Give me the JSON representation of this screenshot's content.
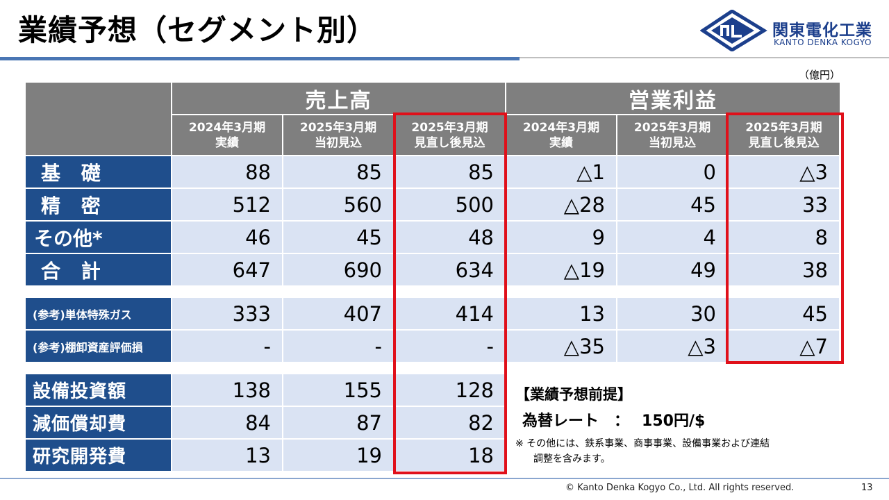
{
  "title": "業績予想（セグメント別）",
  "logo": {
    "company_jp": "関東電化工業",
    "company_en": "KANTO DENKA KOGYO",
    "mark_text": "ᑎᒪ"
  },
  "unit": "（億円）",
  "table": {
    "group_sales": "売上高",
    "group_profit": "営業利益",
    "col_headers": [
      {
        "line1": "2024年3月期",
        "line2": "実績"
      },
      {
        "line1": "2025年3月期",
        "line2": "当初見込"
      },
      {
        "line1": "2025年3月期",
        "line2": "見直し後見込"
      },
      {
        "line1": "2024年3月期",
        "line2": "実績"
      },
      {
        "line1": "2025年3月期",
        "line2": "当初見込"
      },
      {
        "line1": "2025年3月期",
        "line2": "見直し後見込"
      }
    ],
    "rows": [
      {
        "label": "基 礎",
        "values": [
          "88",
          "85",
          "85",
          "△1",
          "0",
          "△3"
        ]
      },
      {
        "label": "精 密",
        "values": [
          "512",
          "560",
          "500",
          "△28",
          "45",
          "33"
        ]
      },
      {
        "label": "その他*",
        "values": [
          "46",
          "45",
          "48",
          "9",
          "4",
          "8"
        ]
      },
      {
        "label": "合 計",
        "values": [
          "647",
          "690",
          "634",
          "△19",
          "49",
          "38"
        ]
      },
      {
        "label": "(参考)単体特殊ガス",
        "values": [
          "333",
          "407",
          "414",
          "13",
          "30",
          "45"
        ]
      },
      {
        "label": "(参考)棚卸資産評価損",
        "values": [
          "-",
          "-",
          "-",
          "△35",
          "△3",
          "△7"
        ]
      },
      {
        "label": "設備投資額",
        "values": [
          "138",
          "155",
          "128"
        ]
      },
      {
        "label": "減価償却費",
        "values": [
          "84",
          "87",
          "82"
        ]
      },
      {
        "label": "研究開発費",
        "values": [
          "13",
          "19",
          "18"
        ]
      }
    ]
  },
  "assumptions": {
    "title": "【業績予想前提】",
    "fx_label": "為替レート　：",
    "fx_value": "150円/$",
    "note_line1": "※ その他には、鉄系事業、商事事業、設備事業および連結",
    "note_line2": "調整を含みます。"
  },
  "footer": "© Kanto Denka Kogyo Co., Ltd. All rights reserved.",
  "page_number": "13"
}
